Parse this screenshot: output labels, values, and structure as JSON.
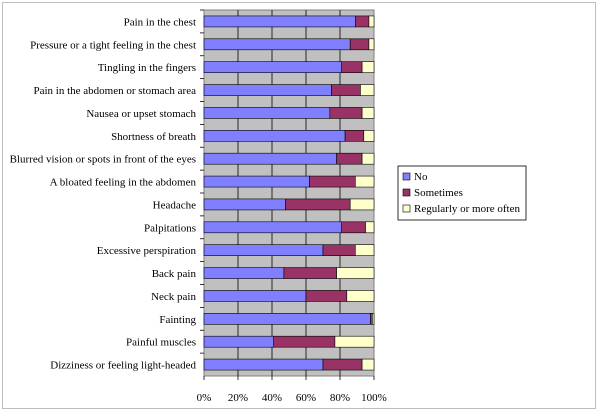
{
  "chart_data": {
    "type": "bar",
    "orientation": "horizontal",
    "stacked": "percent",
    "categories": [
      "Pain in the chest",
      "Pressure or a tight feeling in the chest",
      "Tingling in the fingers",
      "Pain in the abdomen or stomach area",
      "Nausea or upset stomach",
      "Shortness of breath",
      "Blurred vision or spots in front of the eyes",
      "A bloated feeling in the abdomen",
      "Headache",
      "Palpitations",
      "Excessive perspiration",
      "Back pain",
      "Neck pain",
      "Fainting",
      "Painful muscles",
      "Dizziness or feeling light-headed"
    ],
    "series": [
      {
        "name": "No",
        "color": "#8080ff",
        "values": [
          89,
          86,
          81,
          75,
          74,
          83,
          78,
          62,
          48,
          81,
          70,
          47,
          60,
          98,
          41,
          70
        ]
      },
      {
        "name": "Sometimes",
        "color": "#993366",
        "values": [
          8,
          11,
          12,
          17,
          19,
          11,
          15,
          27,
          38,
          14,
          19,
          31,
          24,
          1,
          36,
          23
        ]
      },
      {
        "name": "Regularly or more often",
        "color": "#ffffcc",
        "values": [
          3,
          3,
          7,
          8,
          7,
          6,
          7,
          11,
          14,
          5,
          11,
          22,
          16,
          1,
          23,
          7
        ]
      }
    ],
    "x_ticks": [
      "0%",
      "20%",
      "40%",
      "60%",
      "80%",
      "100%"
    ],
    "xlim": [
      0,
      100
    ],
    "plot_background": "#c0c0c0",
    "grid": true,
    "legend": "right"
  }
}
